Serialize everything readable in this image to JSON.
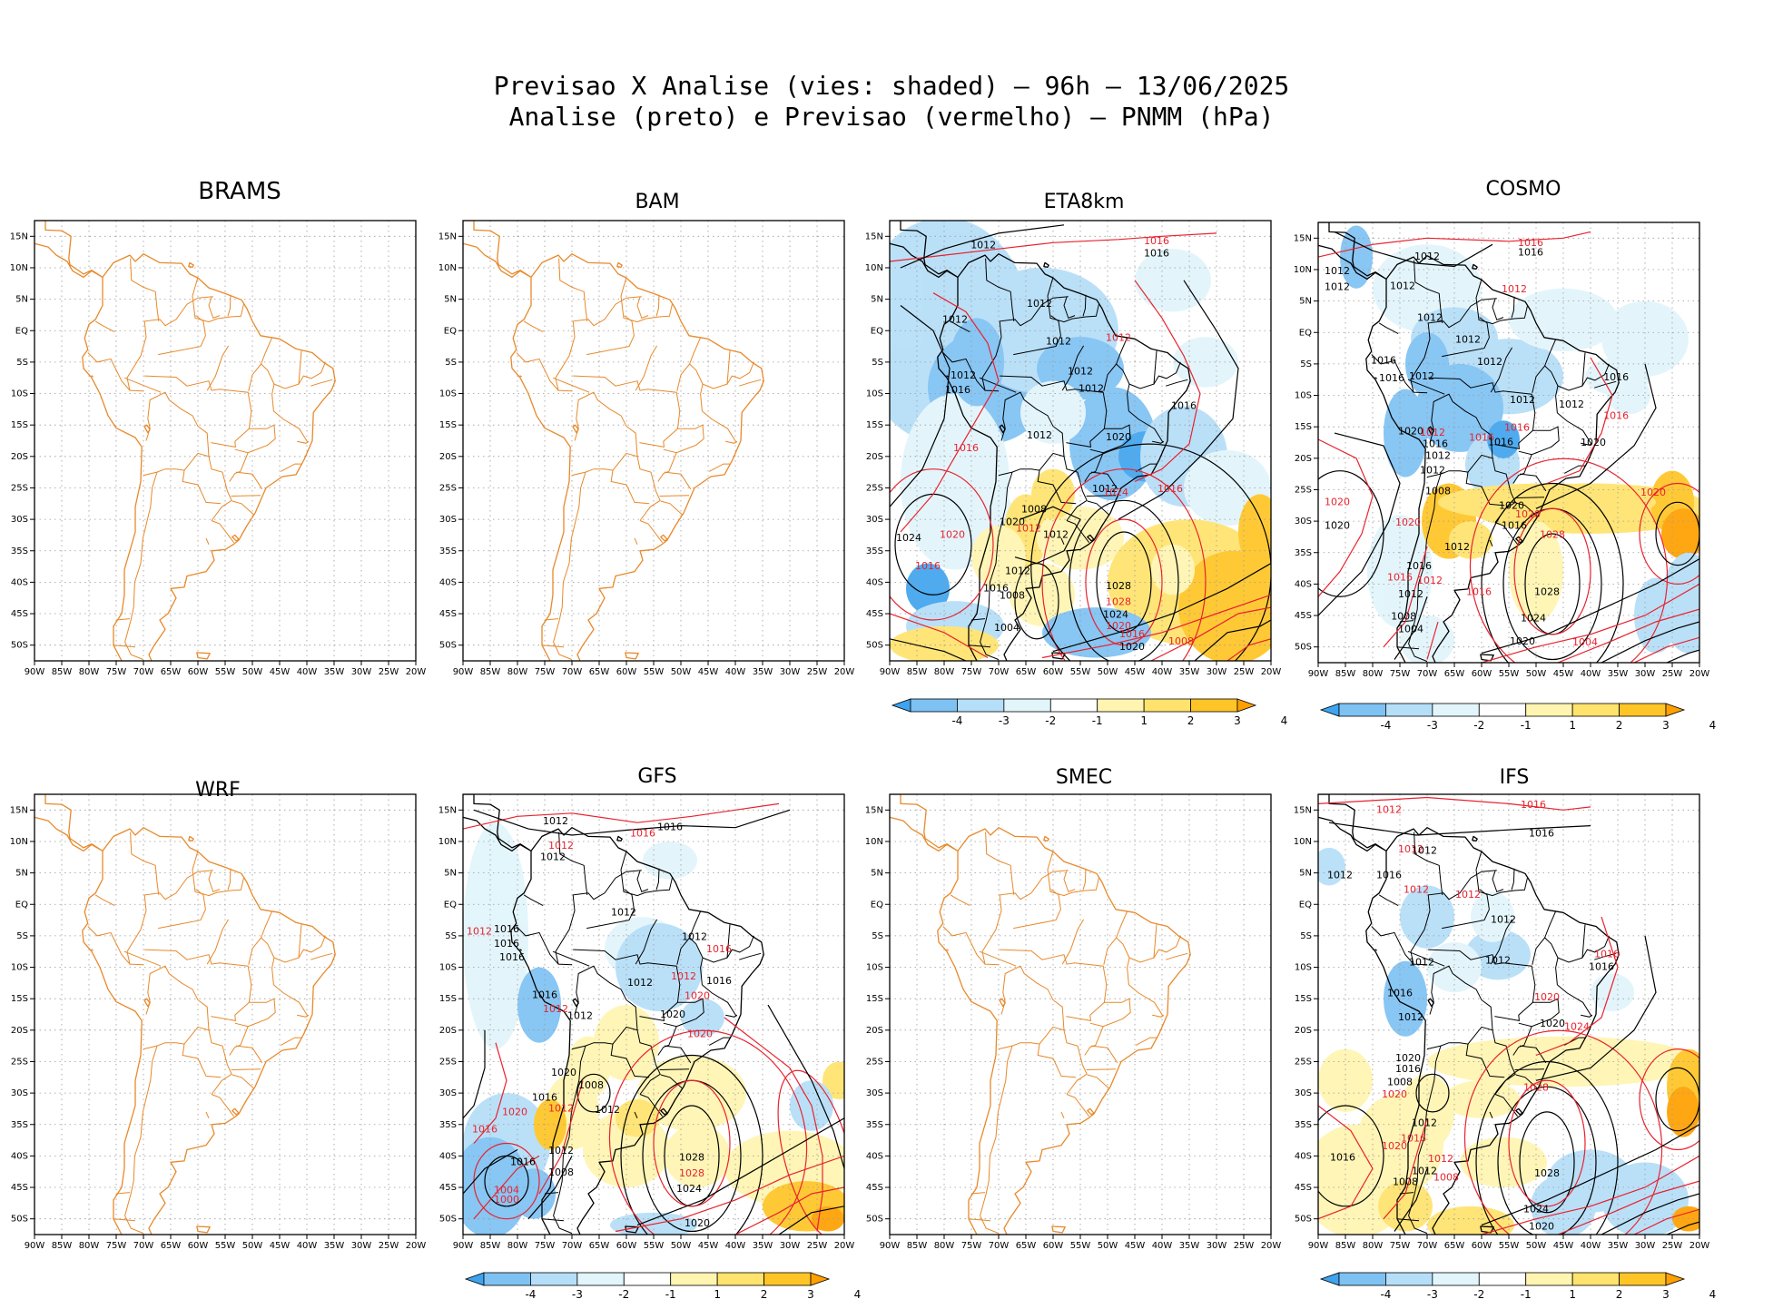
{
  "title": {
    "line1": "Previsao X Analise (vies: shaded) – 96h – 13/06/2025",
    "line2": "Analise (preto) e Previsao (vermelho) – PNMM (hPa)"
  },
  "lat_labels": [
    "15N",
    "10N",
    "5N",
    "EQ",
    "5S",
    "10S",
    "15S",
    "20S",
    "25S",
    "30S",
    "35S",
    "40S",
    "45S",
    "50S"
  ],
  "lon_labels": [
    "90W",
    "85W",
    "80W",
    "75W",
    "70W",
    "65W",
    "60W",
    "55W",
    "50W",
    "45W",
    "40W",
    "35W",
    "30W",
    "25W",
    "20W"
  ],
  "colorbar_labels": [
    "-4",
    "-3",
    "-2",
    "-1",
    "1",
    "2",
    "3",
    "4"
  ],
  "colorbar_colors": [
    "#3fa4ef",
    "#7ec2f4",
    "#b5def8",
    "#e1f5fb",
    "#ffffff",
    "#fff5b0",
    "#ffe36c",
    "#ffc526",
    "#ffa000"
  ],
  "colors": {
    "coast": "#e8892a",
    "analysis": "#000000",
    "forecast": "#e8222e",
    "grid": "#9a9a9a"
  },
  "panels": [
    {
      "id": "brams",
      "name": "BRAMS",
      "has_data": false,
      "has_colorbar": false,
      "labels": []
    },
    {
      "id": "bam",
      "name": "BAM",
      "has_data": false,
      "has_colorbar": false,
      "labels": []
    },
    {
      "id": "eta8km",
      "name": "ETA8km",
      "has_data": true,
      "has_colorbar": true,
      "labels": [
        {
          "t": "1012",
          "c": "k",
          "lon": -72.8,
          "lat": 13.5
        },
        {
          "t": "1016",
          "c": "r",
          "lon": -41,
          "lat": 14.2
        },
        {
          "t": "1016",
          "c": "k",
          "lon": -41,
          "lat": 12.2
        },
        {
          "t": "1012",
          "c": "k",
          "lon": -62.5,
          "lat": 4.2
        },
        {
          "t": "1012",
          "c": "k",
          "lon": -78,
          "lat": 1.7
        },
        {
          "t": "1012",
          "c": "k",
          "lon": -59,
          "lat": -1.8
        },
        {
          "t": "1012",
          "c": "r",
          "lon": -48,
          "lat": -1.2
        },
        {
          "t": "1012",
          "c": "k",
          "lon": -55,
          "lat": -6.5
        },
        {
          "t": "1012",
          "c": "k",
          "lon": -76.5,
          "lat": -7.2
        },
        {
          "t": "1016",
          "c": "k",
          "lon": -77.5,
          "lat": -9.5
        },
        {
          "t": "1012",
          "c": "k",
          "lon": -53,
          "lat": -9.3
        },
        {
          "t": "1012",
          "c": "k",
          "lon": -62.5,
          "lat": -16.7
        },
        {
          "t": "1016",
          "c": "k",
          "lon": -36,
          "lat": -12
        },
        {
          "t": "1016",
          "c": "r",
          "lon": -76,
          "lat": -18.7
        },
        {
          "t": "1020",
          "c": "k",
          "lon": -48,
          "lat": -17
        },
        {
          "t": "1012",
          "c": "k",
          "lon": -50.5,
          "lat": -25.2
        },
        {
          "t": "1024",
          "c": "r",
          "lon": -48.5,
          "lat": -25.8
        },
        {
          "t": "1016",
          "c": "r",
          "lon": -38.5,
          "lat": -25.2
        },
        {
          "t": "1008",
          "c": "k",
          "lon": -63.5,
          "lat": -28.5
        },
        {
          "t": "1012",
          "c": "r",
          "lon": -64.5,
          "lat": -31.5
        },
        {
          "t": "1020",
          "c": "k",
          "lon": -67.5,
          "lat": -30.5
        },
        {
          "t": "1012",
          "c": "k",
          "lon": -59.5,
          "lat": -32.5
        },
        {
          "t": "1020",
          "c": "r",
          "lon": -78.5,
          "lat": -32.5
        },
        {
          "t": "1024",
          "c": "k",
          "lon": -86.5,
          "lat": -33
        },
        {
          "t": "1016",
          "c": "r",
          "lon": -83,
          "lat": -37.5
        },
        {
          "t": "1012",
          "c": "k",
          "lon": -66.5,
          "lat": -38.3
        },
        {
          "t": "1016",
          "c": "k",
          "lon": -70.5,
          "lat": -41
        },
        {
          "t": "1008",
          "c": "k",
          "lon": -67.5,
          "lat": -42.2
        },
        {
          "t": "1028",
          "c": "k",
          "lon": -48,
          "lat": -40.7
        },
        {
          "t": "1028",
          "c": "r",
          "lon": -48,
          "lat": -43.2
        },
        {
          "t": "1024",
          "c": "k",
          "lon": -48.5,
          "lat": -45.2
        },
        {
          "t": "1020",
          "c": "r",
          "lon": -48,
          "lat": -47
        },
        {
          "t": "1016",
          "c": "r",
          "lon": -45.5,
          "lat": -48.3
        },
        {
          "t": "1020",
          "c": "k",
          "lon": -45.5,
          "lat": -50.3
        },
        {
          "t": "1008",
          "c": "r",
          "lon": -36.5,
          "lat": -49.5
        },
        {
          "t": "1004",
          "c": "k",
          "lon": -68.5,
          "lat": -47.3
        }
      ]
    },
    {
      "id": "cosmo",
      "name": "COSMO",
      "has_data": true,
      "has_colorbar": true,
      "labels": [
        {
          "t": "1012",
          "c": "k",
          "lon": -70,
          "lat": 12
        },
        {
          "t": "1016",
          "c": "r",
          "lon": -51,
          "lat": 14.2
        },
        {
          "t": "1016",
          "c": "k",
          "lon": -51,
          "lat": 12.7
        },
        {
          "t": "1012",
          "c": "k",
          "lon": -86.5,
          "lat": 9.7
        },
        {
          "t": "1012",
          "c": "k",
          "lon": -86.5,
          "lat": 7.2
        },
        {
          "t": "1012",
          "c": "k",
          "lon": -74.5,
          "lat": 7.3
        },
        {
          "t": "1012",
          "c": "r",
          "lon": -54,
          "lat": 6.8
        },
        {
          "t": "1012",
          "c": "k",
          "lon": -69.5,
          "lat": 2.3
        },
        {
          "t": "1012",
          "c": "k",
          "lon": -62.5,
          "lat": -1.2
        },
        {
          "t": "1016",
          "c": "k",
          "lon": -78,
          "lat": -4.5
        },
        {
          "t": "1016",
          "c": "k",
          "lon": -76.5,
          "lat": -7.3
        },
        {
          "t": "1012",
          "c": "k",
          "lon": -71,
          "lat": -7
        },
        {
          "t": "1012",
          "c": "k",
          "lon": -58.5,
          "lat": -4.7
        },
        {
          "t": "1012",
          "c": "k",
          "lon": -52.5,
          "lat": -10.8
        },
        {
          "t": "1012",
          "c": "k",
          "lon": -43.5,
          "lat": -11.5
        },
        {
          "t": "1016",
          "c": "k",
          "lon": -35.3,
          "lat": -7.2
        },
        {
          "t": "1016",
          "c": "r",
          "lon": -35.3,
          "lat": -13.3
        },
        {
          "t": "1020",
          "c": "k",
          "lon": -73,
          "lat": -15.8
        },
        {
          "t": "1012",
          "c": "r",
          "lon": -69,
          "lat": -16
        },
        {
          "t": "1016",
          "c": "k",
          "lon": -68.5,
          "lat": -17.8
        },
        {
          "t": "1016",
          "c": "r",
          "lon": -60,
          "lat": -16.8
        },
        {
          "t": "1016",
          "c": "k",
          "lon": -56.5,
          "lat": -17.5
        },
        {
          "t": "1016",
          "c": "r",
          "lon": -53.5,
          "lat": -15.2
        },
        {
          "t": "1020",
          "c": "k",
          "lon": -39.5,
          "lat": -17.6
        },
        {
          "t": "1012",
          "c": "k",
          "lon": -68,
          "lat": -19.7
        },
        {
          "t": "1012",
          "c": "k",
          "lon": -69,
          "lat": -22
        },
        {
          "t": "1008",
          "c": "k",
          "lon": -68,
          "lat": -25.3
        },
        {
          "t": "1020",
          "c": "r",
          "lon": -86.5,
          "lat": -27
        },
        {
          "t": "1020",
          "c": "k",
          "lon": -54.5,
          "lat": -27.6
        },
        {
          "t": "1020",
          "c": "r",
          "lon": -51.5,
          "lat": -29
        },
        {
          "t": "1016",
          "c": "k",
          "lon": -54,
          "lat": -30.8
        },
        {
          "t": "1020",
          "c": "r",
          "lon": -73.5,
          "lat": -30.3
        },
        {
          "t": "1020",
          "c": "k",
          "lon": -86.5,
          "lat": -30.8
        },
        {
          "t": "1028",
          "c": "r",
          "lon": -47,
          "lat": -32.2
        },
        {
          "t": "1020",
          "c": "r",
          "lon": -28.5,
          "lat": -25.5
        },
        {
          "t": "1012",
          "c": "k",
          "lon": -64.5,
          "lat": -34.2
        },
        {
          "t": "1016",
          "c": "k",
          "lon": -71.5,
          "lat": -37.2
        },
        {
          "t": "1016",
          "c": "r",
          "lon": -75,
          "lat": -39
        },
        {
          "t": "1012",
          "c": "r",
          "lon": -69.5,
          "lat": -39.5
        },
        {
          "t": "1016",
          "c": "r",
          "lon": -60.5,
          "lat": -41.3
        },
        {
          "t": "1012",
          "c": "k",
          "lon": -73,
          "lat": -41.7
        },
        {
          "t": "1028",
          "c": "k",
          "lon": -48,
          "lat": -41.3
        },
        {
          "t": "1024",
          "c": "k",
          "lon": -50.5,
          "lat": -45.5
        },
        {
          "t": "1008",
          "c": "k",
          "lon": -74.3,
          "lat": -45.2
        },
        {
          "t": "1004",
          "c": "k",
          "lon": -73,
          "lat": -47.2
        },
        {
          "t": "1020",
          "c": "k",
          "lon": -52.5,
          "lat": -49.2
        },
        {
          "t": "1004",
          "c": "r",
          "lon": -41,
          "lat": -49.3
        }
      ]
    },
    {
      "id": "wrf",
      "name": "WRF",
      "has_data": false,
      "has_colorbar": false,
      "labels": []
    },
    {
      "id": "gfs",
      "name": "GFS",
      "has_data": true,
      "has_colorbar": true,
      "labels": [
        {
          "t": "1012",
          "c": "k",
          "lon": -73,
          "lat": 13.2
        },
        {
          "t": "1016",
          "c": "r",
          "lon": -57,
          "lat": 11.2
        },
        {
          "t": "1016",
          "c": "k",
          "lon": -52,
          "lat": 12.2
        },
        {
          "t": "1012",
          "c": "r",
          "lon": -72,
          "lat": 9.3
        },
        {
          "t": "1012",
          "c": "k",
          "lon": -73.5,
          "lat": 7.5
        },
        {
          "t": "1012",
          "c": "r",
          "lon": -87,
          "lat": -4.4
        },
        {
          "t": "1016",
          "c": "k",
          "lon": -82,
          "lat": -4
        },
        {
          "t": "1016",
          "c": "k",
          "lon": -82,
          "lat": -6.3
        },
        {
          "t": "1016",
          "c": "k",
          "lon": -81,
          "lat": -8.5
        },
        {
          "t": "1012",
          "c": "k",
          "lon": -60.5,
          "lat": -1.3
        },
        {
          "t": "1012",
          "c": "k",
          "lon": -47.5,
          "lat": -5.2
        },
        {
          "t": "1016",
          "c": "r",
          "lon": -43,
          "lat": -7.2
        },
        {
          "t": "1016",
          "c": "k",
          "lon": -43,
          "lat": -12.2
        },
        {
          "t": "1012",
          "c": "r",
          "lon": -49.5,
          "lat": -11.5
        },
        {
          "t": "1012",
          "c": "k",
          "lon": -57.5,
          "lat": -12.5
        },
        {
          "t": "1016",
          "c": "k",
          "lon": -75,
          "lat": -14.5
        },
        {
          "t": "1020",
          "c": "r",
          "lon": -47,
          "lat": -14.6
        },
        {
          "t": "1012",
          "c": "r",
          "lon": -73,
          "lat": -16.7
        },
        {
          "t": "1012",
          "c": "k",
          "lon": -68.5,
          "lat": -17.8
        },
        {
          "t": "1020",
          "c": "k",
          "lon": -51.5,
          "lat": -17.6
        },
        {
          "t": "1020",
          "c": "r",
          "lon": -46.5,
          "lat": -20.7
        },
        {
          "t": "1020",
          "c": "k",
          "lon": -71.5,
          "lat": -26.8
        },
        {
          "t": "1008",
          "c": "k",
          "lon": -66.5,
          "lat": -28.8
        },
        {
          "t": "1012",
          "c": "k",
          "lon": -63.5,
          "lat": -32.7
        },
        {
          "t": "1012",
          "c": "r",
          "lon": -72,
          "lat": -32.5
        },
        {
          "t": "1016",
          "c": "k",
          "lon": -75,
          "lat": -30.8
        },
        {
          "t": "1020",
          "c": "r",
          "lon": -80.5,
          "lat": -33.1
        },
        {
          "t": "1016",
          "c": "r",
          "lon": -86,
          "lat": -35.8
        },
        {
          "t": "1012",
          "c": "k",
          "lon": -72,
          "lat": -39.2
        },
        {
          "t": "1028",
          "c": "k",
          "lon": -48,
          "lat": -40.3
        },
        {
          "t": "1028",
          "c": "r",
          "lon": -48,
          "lat": -42.8
        },
        {
          "t": "1024",
          "c": "k",
          "lon": -48.5,
          "lat": -45.3
        },
        {
          "t": "1008",
          "c": "k",
          "lon": -72,
          "lat": -42.7
        },
        {
          "t": "1004",
          "c": "r",
          "lon": -82,
          "lat": -45.5
        },
        {
          "t": "1000",
          "c": "r",
          "lon": -82,
          "lat": -47
        },
        {
          "t": "1020",
          "c": "k",
          "lon": -47,
          "lat": -50.8
        },
        {
          "t": "1016",
          "c": "k",
          "lon": -79,
          "lat": -41
        }
      ]
    },
    {
      "id": "smec",
      "name": "SMEC",
      "has_data": false,
      "has_colorbar": false,
      "labels": []
    },
    {
      "id": "ifs",
      "name": "IFS",
      "has_data": true,
      "has_colorbar": true,
      "labels": [
        {
          "t": "1012",
          "c": "r",
          "lon": -77,
          "lat": 15
        },
        {
          "t": "1016",
          "c": "r",
          "lon": -50.5,
          "lat": 15.8
        },
        {
          "t": "1016",
          "c": "k",
          "lon": -49,
          "lat": 11.2
        },
        {
          "t": "1012",
          "c": "r",
          "lon": -73,
          "lat": 8.7
        },
        {
          "t": "1012",
          "c": "k",
          "lon": -70.5,
          "lat": 8.5
        },
        {
          "t": "1012",
          "c": "k",
          "lon": -86,
          "lat": 4.6
        },
        {
          "t": "1016",
          "c": "k",
          "lon": -77,
          "lat": 4.6
        },
        {
          "t": "1012",
          "c": "r",
          "lon": -72,
          "lat": 2.3
        },
        {
          "t": "1012",
          "c": "r",
          "lon": -62.5,
          "lat": 1.5
        },
        {
          "t": "1012",
          "c": "k",
          "lon": -56,
          "lat": -2.5
        },
        {
          "t": "1012",
          "c": "k",
          "lon": -71,
          "lat": -9.3
        },
        {
          "t": "1012",
          "c": "k",
          "lon": -57,
          "lat": -9
        },
        {
          "t": "1016",
          "c": "r",
          "lon": -37,
          "lat": -8
        },
        {
          "t": "1016",
          "c": "k",
          "lon": -38,
          "lat": -10
        },
        {
          "t": "1016",
          "c": "k",
          "lon": -75,
          "lat": -14.2
        },
        {
          "t": "1012",
          "c": "k",
          "lon": -73,
          "lat": -18
        },
        {
          "t": "1020",
          "c": "r",
          "lon": -48,
          "lat": -14.8
        },
        {
          "t": "1020",
          "c": "k",
          "lon": -47,
          "lat": -19
        },
        {
          "t": "1024",
          "c": "r",
          "lon": -42.5,
          "lat": -19.5
        },
        {
          "t": "1020",
          "c": "k",
          "lon": -73.5,
          "lat": -24.5
        },
        {
          "t": "1016",
          "c": "k",
          "lon": -73.5,
          "lat": -26.2
        },
        {
          "t": "1008",
          "c": "k",
          "lon": -75,
          "lat": -28.3
        },
        {
          "t": "1020",
          "c": "r",
          "lon": -76,
          "lat": -30.3
        },
        {
          "t": "1028",
          "c": "r",
          "lon": -50,
          "lat": -29.2
        },
        {
          "t": "1012",
          "c": "k",
          "lon": -70.5,
          "lat": -34.8
        },
        {
          "t": "1016",
          "c": "r",
          "lon": -72.5,
          "lat": -37.3
        },
        {
          "t": "1020",
          "c": "r",
          "lon": -76,
          "lat": -38.5
        },
        {
          "t": "1016",
          "c": "k",
          "lon": -85.5,
          "lat": -40.3
        },
        {
          "t": "1012",
          "c": "r",
          "lon": -67.5,
          "lat": -40.5
        },
        {
          "t": "1008",
          "c": "r",
          "lon": -66.5,
          "lat": -43.5
        },
        {
          "t": "1012",
          "c": "k",
          "lon": -70.5,
          "lat": -42.5
        },
        {
          "t": "1008",
          "c": "k",
          "lon": -74,
          "lat": -44.2
        },
        {
          "t": "1028",
          "c": "k",
          "lon": -48,
          "lat": -42.8
        },
        {
          "t": "1024",
          "c": "k",
          "lon": -50,
          "lat": -48.5
        },
        {
          "t": "1020",
          "c": "k",
          "lon": -49,
          "lat": -51.3
        }
      ]
    }
  ]
}
